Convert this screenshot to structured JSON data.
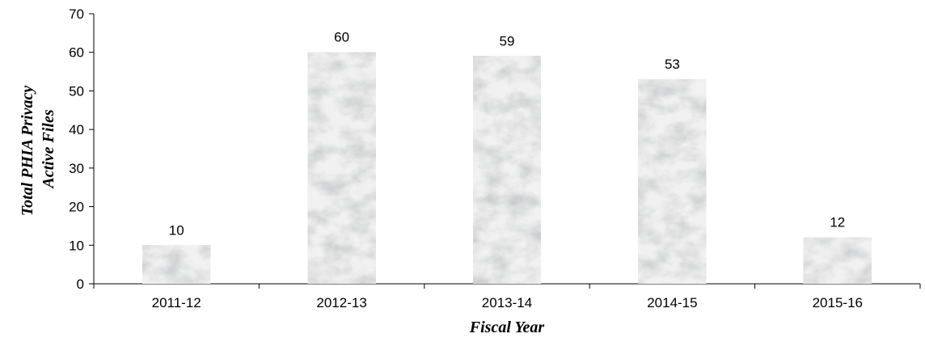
{
  "chart_data": {
    "type": "bar",
    "categories": [
      "2011-12",
      "2012-13",
      "2013-14",
      "2014-15",
      "2015-16"
    ],
    "values": [
      10,
      60,
      59,
      53,
      12
    ],
    "title": "",
    "xlabel": "Fiscal Year",
    "ylabel_lines": [
      "Total PHIA Privacy",
      "Active Files"
    ],
    "ylim": [
      0,
      70
    ],
    "yticks": [
      0,
      10,
      20,
      30,
      40,
      50,
      60,
      70
    ],
    "grid": false,
    "legend": "none",
    "bar_fill": "#ececec",
    "bar_texture": "marbled-grey"
  }
}
